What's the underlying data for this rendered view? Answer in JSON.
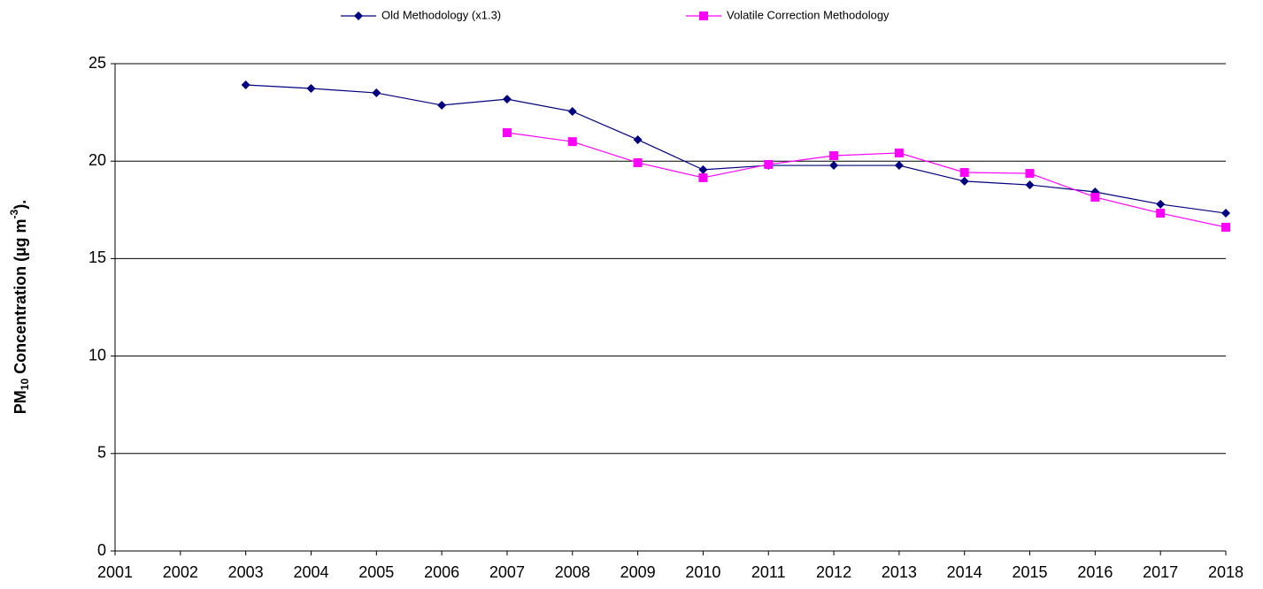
{
  "chart_data": {
    "type": "line",
    "y_label": [
      "PM",
      "10",
      " Concentration (µg m",
      "-3",
      ")."
    ],
    "x": [
      2001,
      2002,
      2003,
      2004,
      2005,
      2006,
      2007,
      2008,
      2009,
      2010,
      2011,
      2012,
      2013,
      2014,
      2015,
      2016,
      2017,
      2018
    ],
    "xlim": [
      2001,
      2018
    ],
    "xticks": [
      2001,
      2002,
      2003,
      2004,
      2005,
      2006,
      2007,
      2008,
      2009,
      2010,
      2011,
      2012,
      2013,
      2014,
      2015,
      2016,
      2017,
      2018
    ],
    "ylim": [
      0,
      25
    ],
    "yticks": [
      0,
      5,
      10,
      15,
      20,
      25
    ],
    "grid": true,
    "legend": "top",
    "series": [
      {
        "name": "Old Methodology (x1.3)",
        "color": "#000080",
        "marker": "diamond",
        "values": [
          null,
          null,
          23.91,
          23.73,
          23.5,
          22.87,
          23.18,
          22.55,
          21.1,
          19.56,
          19.78,
          19.78,
          19.78,
          18.97,
          18.78,
          18.42,
          17.79,
          17.33
        ]
      },
      {
        "name": "Volatile Correction Methodology",
        "color": "#ff00ff",
        "marker": "square",
        "values": [
          null,
          null,
          null,
          null,
          null,
          null,
          21.46,
          21.0,
          19.92,
          19.15,
          19.83,
          20.28,
          20.42,
          19.42,
          19.37,
          18.15,
          17.33,
          16.61
        ]
      }
    ]
  }
}
